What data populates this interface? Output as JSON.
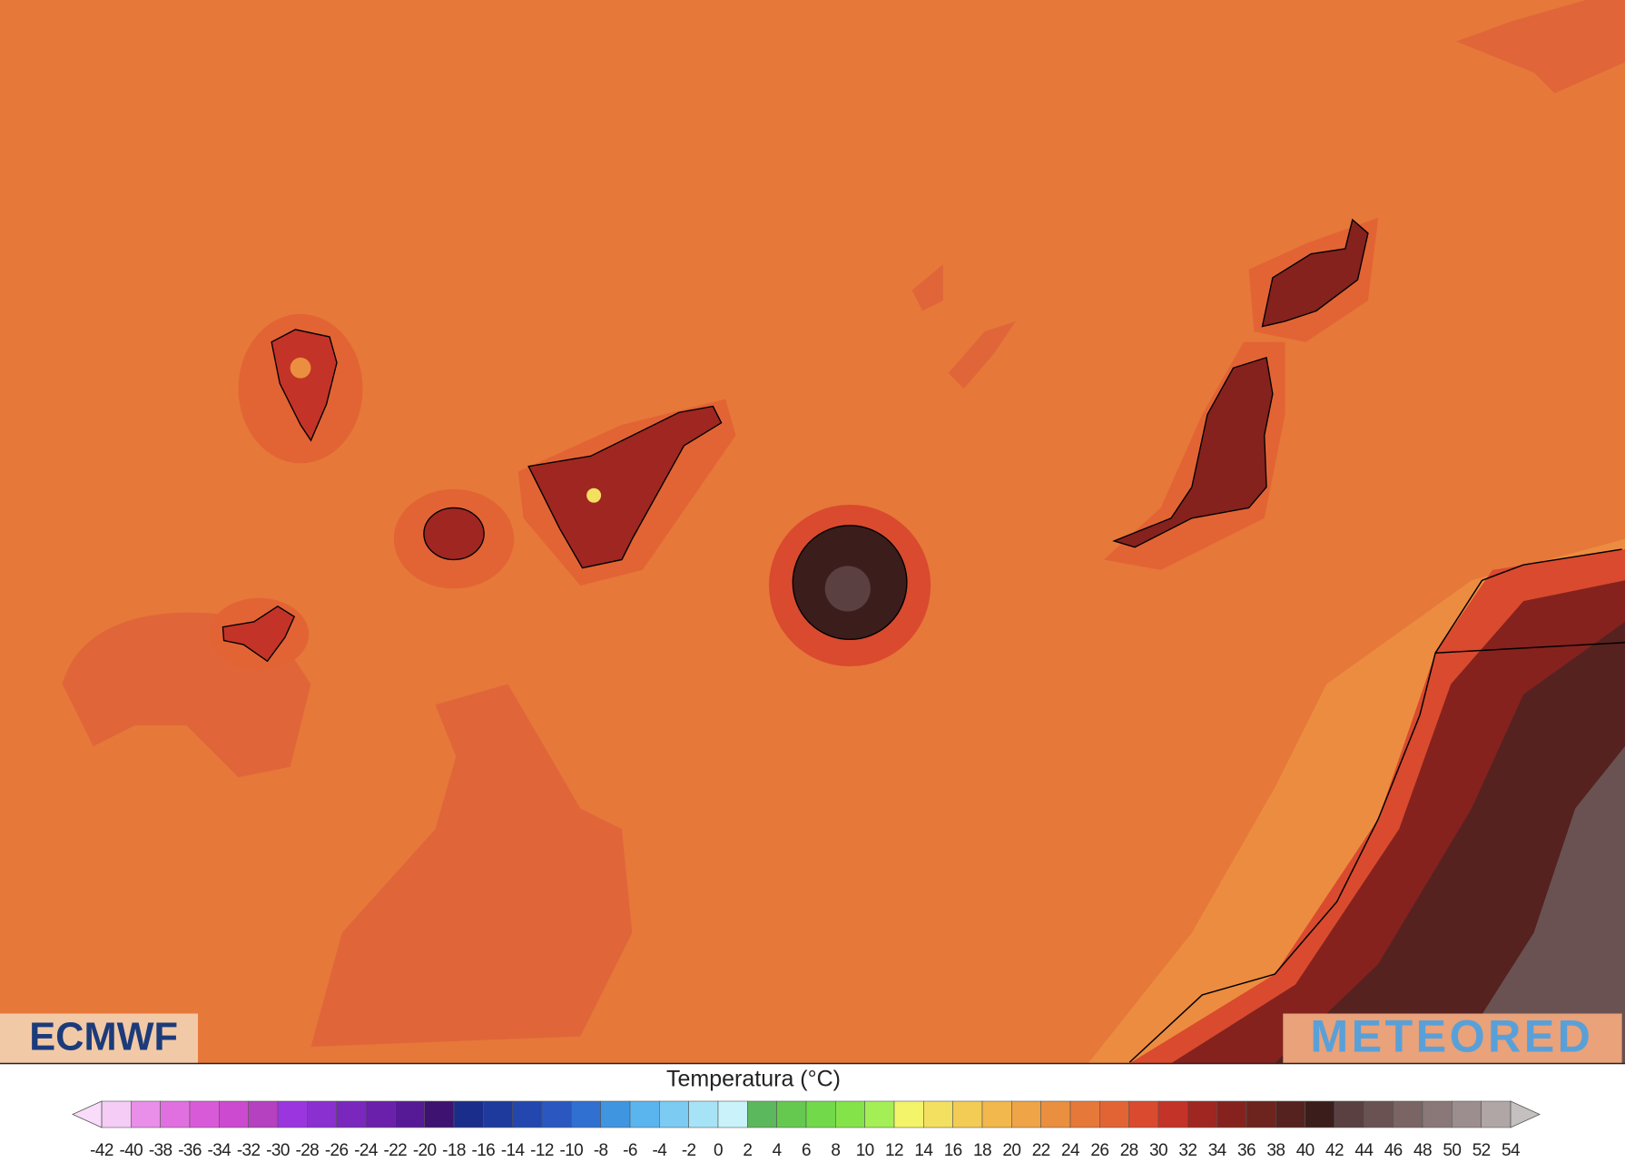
{
  "map": {
    "logos": {
      "left": "ECMWF",
      "right": "METEORED"
    }
  },
  "legend": {
    "title": "Temperatura (°C)",
    "ticks": [
      -42,
      -40,
      -38,
      -36,
      -34,
      -32,
      -30,
      -28,
      -26,
      -24,
      -22,
      -20,
      -18,
      -16,
      -14,
      -12,
      -10,
      -8,
      -6,
      -4,
      -2,
      0,
      2,
      4,
      6,
      8,
      10,
      12,
      14,
      16,
      18,
      20,
      22,
      24,
      26,
      28,
      30,
      32,
      34,
      36,
      38,
      40,
      42,
      44,
      46,
      48,
      50,
      52,
      54
    ],
    "colors": [
      "#f5ccf5",
      "#e98ee9",
      "#e070e0",
      "#d95ad9",
      "#cc4acf",
      "#b540c0",
      "#9a35e0",
      "#8a2fd0",
      "#7a27bd",
      "#6a20aa",
      "#571a96",
      "#3d1270",
      "#1a2d8a",
      "#1e3a9c",
      "#2347ae",
      "#2a58c0",
      "#3070d0",
      "#3f95e0",
      "#5ab4ee",
      "#7ccbf2",
      "#a7e3f7",
      "#c9f2fa",
      "#5cb85c",
      "#66c94f",
      "#72d94a",
      "#85e34a",
      "#a4ef55",
      "#f4f46a",
      "#f4e060",
      "#f3cc55",
      "#f2b84d",
      "#eea447",
      "#ea8f40",
      "#e6783a",
      "#e26434",
      "#da4a2e",
      "#c43327",
      "#a02621",
      "#85221e",
      "#6d231e",
      "#552220",
      "#3b1d1b",
      "#5a4040",
      "#6a5252",
      "#7a6464",
      "#8a7878",
      "#9c8e8e",
      "#b0a6a6"
    ],
    "under_color": "#f9dcf9",
    "over_color": "#c4c0c0"
  }
}
